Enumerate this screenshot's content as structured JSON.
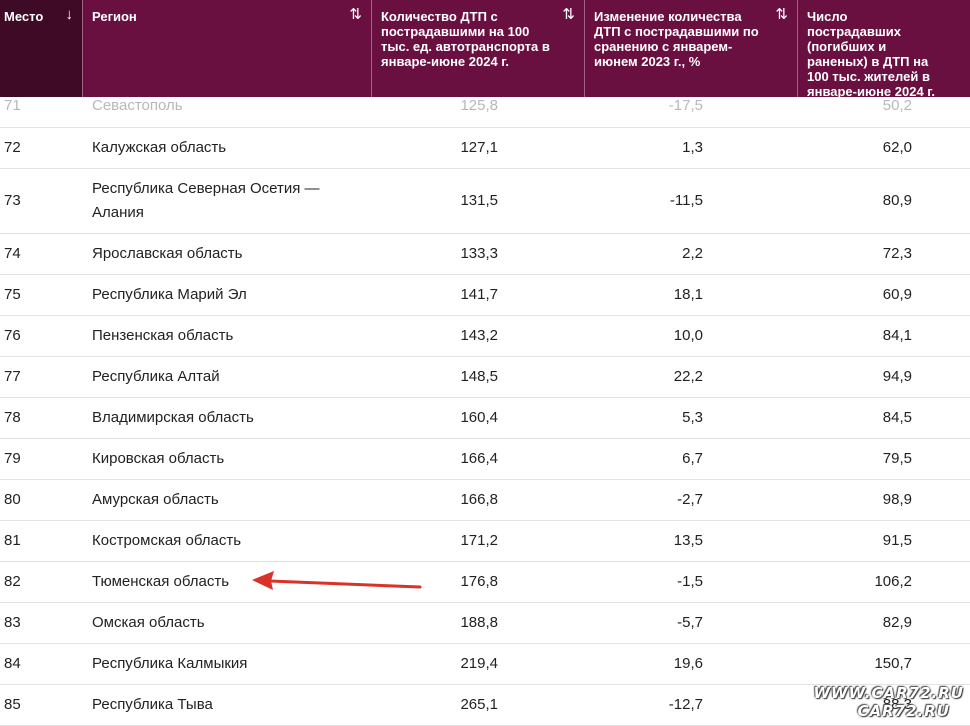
{
  "header": {
    "columns": [
      {
        "label": "Место",
        "sort_icon": "↓"
      },
      {
        "label": "Регион",
        "sort_icon": "⇅"
      },
      {
        "label": "Количество ДТП с пострадавшими на 100 тыс. ед. автотранспорта в январе-июне 2024 г.",
        "sort_icon": "⇅"
      },
      {
        "label": "Изменение количества ДТП с пострадавшими по сранению с январем-июнем 2023 г., %",
        "sort_icon": "⇅"
      },
      {
        "label": "Число пострадавших (погибших и раненых) в ДТП на 100 тыс. жителей в январе-июне 2024 г.",
        "sort_icon": ""
      }
    ]
  },
  "rows": [
    {
      "place": "71",
      "region": "Севастополь",
      "accidents": "125,8",
      "change": "-17,5",
      "victims": "50,2"
    },
    {
      "place": "72",
      "region": "Калужская область",
      "accidents": "127,1",
      "change": "1,3",
      "victims": "62,0"
    },
    {
      "place": "73",
      "region": "Республика Северная Осетия — Алания",
      "accidents": "131,5",
      "change": "-11,5",
      "victims": "80,9"
    },
    {
      "place": "74",
      "region": "Ярославская область",
      "accidents": "133,3",
      "change": "2,2",
      "victims": "72,3"
    },
    {
      "place": "75",
      "region": "Республика Марий Эл",
      "accidents": "141,7",
      "change": "18,1",
      "victims": "60,9"
    },
    {
      "place": "76",
      "region": "Пензенская область",
      "accidents": "143,2",
      "change": "10,0",
      "victims": "84,1"
    },
    {
      "place": "77",
      "region": "Республика Алтай",
      "accidents": "148,5",
      "change": "22,2",
      "victims": "94,9"
    },
    {
      "place": "78",
      "region": "Владимирская область",
      "accidents": "160,4",
      "change": "5,3",
      "victims": "84,5"
    },
    {
      "place": "79",
      "region": "Кировская область",
      "accidents": "166,4",
      "change": "6,7",
      "victims": "79,5"
    },
    {
      "place": "80",
      "region": "Амурская область",
      "accidents": "166,8",
      "change": "-2,7",
      "victims": "98,9"
    },
    {
      "place": "81",
      "region": "Костромская область",
      "accidents": "171,2",
      "change": "13,5",
      "victims": "91,5"
    },
    {
      "place": "82",
      "region": "Тюменская область",
      "accidents": "176,8",
      "change": "-1,5",
      "victims": "106,2"
    },
    {
      "place": "83",
      "region": "Омская область",
      "accidents": "188,8",
      "change": "-5,7",
      "victims": "82,9"
    },
    {
      "place": "84",
      "region": "Республика Калмыкия",
      "accidents": "219,4",
      "change": "19,6",
      "victims": "150,7"
    },
    {
      "place": "85",
      "region": "Республика Тыва",
      "accidents": "265,1",
      "change": "-12,7",
      "victims": "88,3"
    }
  ],
  "annotation": {
    "arrow_color": "#d9322b",
    "points_to_place": "82"
  },
  "watermark": {
    "line1": "WWW.CAR72.RU",
    "line2": "CAR72.RU"
  },
  "colors": {
    "header_bg": "#6a1040",
    "header_first_col_bg": "#3e0a26"
  }
}
